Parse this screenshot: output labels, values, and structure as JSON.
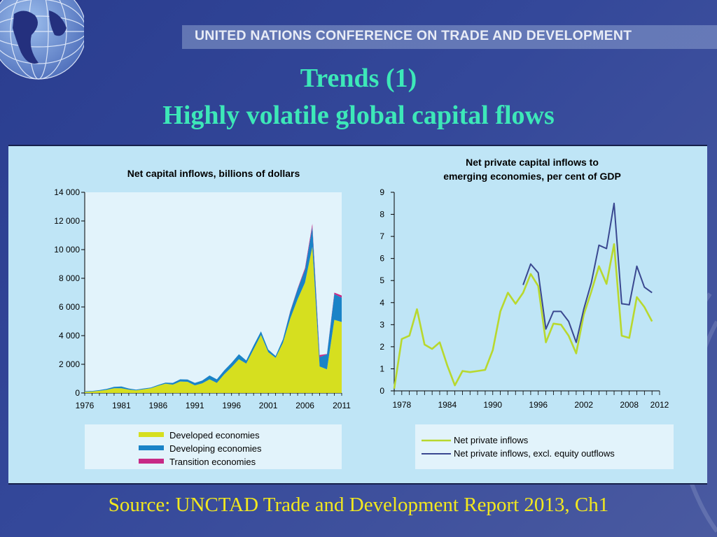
{
  "banner": "UNITED NATIONS CONFERENCE ON TRADE AND DEVELOPMENT",
  "title_line1": "Trends (1)",
  "title_line2": "Highly volatile global capital flows",
  "source": "Source: UNCTAD Trade and Development Report 2013, Ch1",
  "colors": {
    "developed": "#d6df1f",
    "developing": "#1a83c7",
    "transition": "#c72a86",
    "net_private": "#b8d82e",
    "net_private_excl": "#3a4890",
    "title": "#3de8b8",
    "source": "#f2e81e"
  },
  "chart_data": [
    {
      "type": "area",
      "title": "Net capital inflows, billions of dollars",
      "xlabel": "",
      "ylabel": "",
      "ylim": [
        0,
        14000
      ],
      "x_ticks": [
        1976,
        1981,
        1986,
        1991,
        1996,
        2001,
        2006,
        2011
      ],
      "y_ticks": [
        0,
        2000,
        4000,
        6000,
        8000,
        10000,
        12000,
        14000
      ],
      "y_tick_labels": [
        "0",
        "2 000",
        "4 000",
        "6 000",
        "8 000",
        "10 000",
        "12 000",
        "14 000"
      ],
      "stacked": true,
      "legend_position": "bottom",
      "x": [
        1976,
        1977,
        1978,
        1979,
        1980,
        1981,
        1982,
        1983,
        1984,
        1985,
        1986,
        1987,
        1988,
        1989,
        1990,
        1991,
        1992,
        1993,
        1994,
        1995,
        1996,
        1997,
        1998,
        1999,
        2000,
        2001,
        2002,
        2003,
        2004,
        2005,
        2006,
        2007,
        2008,
        2009,
        2010,
        2011
      ],
      "series": [
        {
          "name": "Developed economies",
          "color": "#d6df1f",
          "values": [
            80,
            100,
            150,
            220,
            330,
            330,
            230,
            180,
            260,
            330,
            500,
            650,
            580,
            800,
            780,
            530,
            670,
            950,
            700,
            1300,
            1800,
            2350,
            2050,
            3050,
            4050,
            2850,
            2450,
            3500,
            5200,
            6550,
            7700,
            10200,
            1850,
            1650,
            5100,
            4950
          ]
        },
        {
          "name": "Developing economies",
          "color": "#1a83c7",
          "values": [
            40,
            40,
            50,
            70,
            100,
            120,
            80,
            50,
            50,
            50,
            60,
            70,
            120,
            150,
            160,
            170,
            200,
            270,
            250,
            270,
            300,
            350,
            220,
            260,
            250,
            180,
            130,
            250,
            500,
            700,
            900,
            1400,
            650,
            1050,
            1800,
            1700
          ]
        },
        {
          "name": "Transition economies",
          "color": "#c72a86",
          "values": [
            0,
            0,
            0,
            0,
            0,
            0,
            0,
            0,
            0,
            0,
            0,
            0,
            0,
            0,
            0,
            0,
            0,
            0,
            0,
            0,
            0,
            0,
            0,
            0,
            0,
            0,
            0,
            0,
            30,
            50,
            120,
            200,
            150,
            20,
            100,
            150
          ]
        }
      ]
    },
    {
      "type": "line",
      "title": "Net private capital inflows to emerging economies, per cent of GDP",
      "title_lines": [
        "Net private capital inflows to",
        "emerging economies, per cent of GDP"
      ],
      "xlabel": "",
      "ylabel": "",
      "ylim": [
        0,
        9
      ],
      "x_ticks": [
        1978,
        1984,
        1990,
        1996,
        2002,
        2008,
        2012
      ],
      "y_ticks": [
        0,
        1,
        2,
        3,
        4,
        5,
        6,
        7,
        8,
        9
      ],
      "legend_position": "bottom",
      "series": [
        {
          "name": "Net private inflows",
          "color": "#b8d82e",
          "x": [
            1977,
            1978,
            1979,
            1980,
            1981,
            1982,
            1983,
            1984,
            1985,
            1986,
            1987,
            1988,
            1989,
            1990,
            1991,
            1992,
            1993,
            1994,
            1995,
            1996,
            1997,
            1998,
            1999,
            2000,
            2001,
            2002,
            2003,
            2004,
            2005,
            2006,
            2007,
            2008,
            2009,
            2010,
            2011,
            2012
          ],
          "values": [
            0.1,
            2.35,
            2.5,
            3.7,
            2.1,
            1.9,
            2.2,
            1.15,
            0.25,
            0.9,
            0.85,
            0.9,
            0.95,
            1.85,
            3.6,
            4.45,
            3.95,
            4.45,
            5.3,
            4.75,
            2.2,
            3.05,
            3.0,
            2.5,
            1.7,
            3.45,
            4.5,
            5.65,
            4.85,
            6.65,
            2.5,
            2.4,
            4.25,
            3.8,
            3.15,
            null
          ]
        },
        {
          "name": "Net private inflows, excl. equity outflows",
          "color": "#3a4890",
          "x": [
            1977,
            1978,
            1979,
            1980,
            1981,
            1982,
            1983,
            1984,
            1985,
            1986,
            1987,
            1988,
            1989,
            1990,
            1991,
            1992,
            1993,
            1994,
            1995,
            1996,
            1997,
            1998,
            1999,
            2000,
            2001,
            2002,
            2003,
            2004,
            2005,
            2006,
            2007,
            2008,
            2009,
            2010,
            2011,
            2012
          ],
          "values": [
            null,
            null,
            null,
            null,
            null,
            null,
            null,
            null,
            null,
            null,
            null,
            null,
            null,
            null,
            null,
            null,
            null,
            4.8,
            5.75,
            5.35,
            2.8,
            3.6,
            3.6,
            3.15,
            2.2,
            3.7,
            4.9,
            6.6,
            6.45,
            8.5,
            3.95,
            3.9,
            5.65,
            4.7,
            4.45,
            null
          ]
        }
      ]
    }
  ]
}
